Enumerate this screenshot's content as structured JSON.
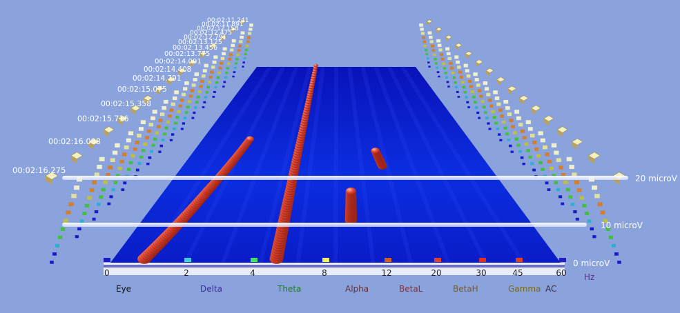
{
  "chart_data": {
    "type": "scatter",
    "title": "",
    "x_axis": {
      "unit": "Hz",
      "ticks": [
        "0",
        "2",
        "4",
        "8",
        "12",
        "20",
        "30",
        "45",
        "60"
      ]
    },
    "bands": [
      {
        "name": "Eye",
        "color": "#111111"
      },
      {
        "name": "Delta",
        "color": "#3a2a9a"
      },
      {
        "name": "Theta",
        "color": "#1f7a2a"
      },
      {
        "name": "Alpha",
        "color": "#6a2f2f"
      },
      {
        "name": "BetaL",
        "color": "#8a3030"
      },
      {
        "name": "BetaH",
        "color": "#7a5a2a"
      },
      {
        "name": "Gamma",
        "color": "#7a6a10"
      },
      {
        "name": "AC",
        "color": "#3a2a3a"
      }
    ],
    "z_axis": {
      "unit": "microV",
      "levels": [
        {
          "value": 0,
          "label": "0 microV"
        },
        {
          "value": 10,
          "label": "10 microV"
        },
        {
          "value": 20,
          "label": "20 microV"
        }
      ]
    },
    "time_axis": {
      "labels": [
        "00:02:16.275",
        "00:02:16.008",
        "00:02:15.716",
        "00:02:15.358",
        "00:02:15.075",
        "00:02:14.791",
        "00:02:14.408",
        "00:02:14.091",
        "00:02:13.775",
        "00:02:13.456",
        "00:02:13.125",
        "00:02:12.791",
        "00:02:12.475",
        "00:02:12.158",
        "00:02:11.891",
        "00:02:11.241"
      ]
    },
    "peak_tracks": [
      {
        "name": "delta-peak",
        "points": [
          {
            "hz": 1.2,
            "t": 0.0
          },
          {
            "hz": 2.1,
            "t": 0.35
          },
          {
            "hz": 2.9,
            "t": 0.62
          }
        ]
      },
      {
        "name": "alpha-peak",
        "points": [
          {
            "hz": 7.8,
            "t": 0.0
          },
          {
            "hz": 7.8,
            "t": 0.5
          },
          {
            "hz": 7.9,
            "t": 1.0
          }
        ]
      },
      {
        "name": "beta-peak",
        "points": [
          {
            "hz": 14.5,
            "t": 0.2
          },
          {
            "hz": 14.8,
            "t": 0.35
          }
        ]
      },
      {
        "name": "betah-peak",
        "points": [
          {
            "hz": 22.0,
            "t": 0.48
          },
          {
            "hz": 21.0,
            "t": 0.56
          }
        ]
      }
    ],
    "colors": {
      "background": "#8aa3dc",
      "plane": "#0a1ed4",
      "peak": "#d83a2a",
      "guide": "#ffffff"
    }
  }
}
